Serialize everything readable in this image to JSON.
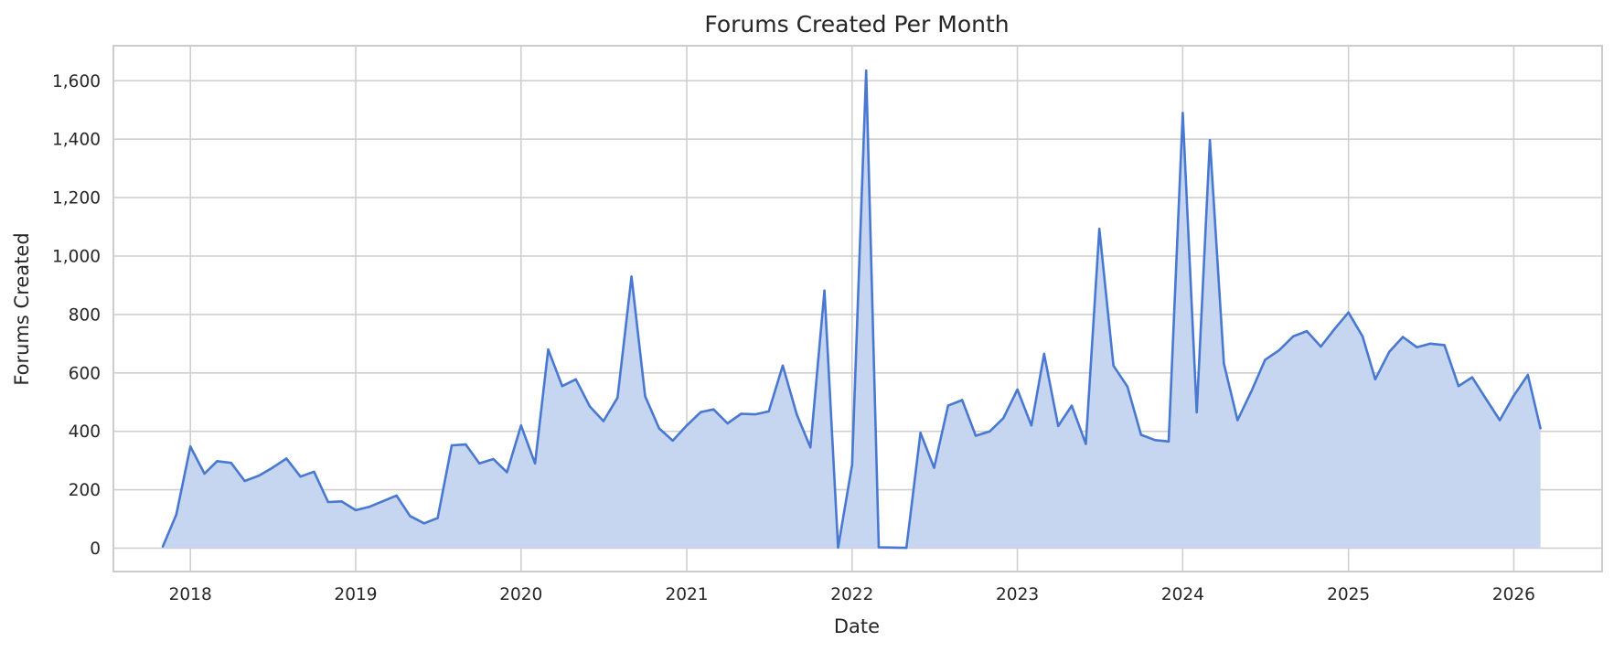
{
  "chart_data": {
    "type": "area",
    "title": "Forums Created Per Month",
    "xlabel": "Date",
    "ylabel": "Forums Created",
    "x_tick_labels": [
      "2018",
      "2019",
      "2020",
      "2021",
      "2022",
      "2023",
      "2024",
      "2025",
      "2026"
    ],
    "y_ticks": [
      0,
      200,
      400,
      600,
      800,
      1000,
      1200,
      1400,
      1600
    ],
    "y_tick_labels": [
      "0",
      "200",
      "400",
      "600",
      "800",
      "1,000",
      "1,200",
      "1,400",
      "1,600"
    ],
    "xlim": [
      "2017-07-15",
      "2026-07-15"
    ],
    "ylim": [
      -80,
      1720
    ],
    "grid": true,
    "line_color": "#4878d0",
    "fill_color": "#c6d5f0",
    "series": [
      {
        "x": [
          "2017-11-01",
          "2017-12-01",
          "2018-01-01",
          "2018-02-01",
          "2018-03-01",
          "2018-04-01",
          "2018-05-01",
          "2018-06-01",
          "2018-07-01",
          "2018-08-01",
          "2018-09-01",
          "2018-10-01",
          "2018-11-01",
          "2018-12-01",
          "2019-01-01",
          "2019-02-01",
          "2019-03-01",
          "2019-04-01",
          "2019-05-01",
          "2019-06-01",
          "2019-07-01",
          "2019-08-01",
          "2019-09-01",
          "2019-10-01",
          "2019-11-01",
          "2019-12-01",
          "2020-01-01",
          "2020-02-01",
          "2020-03-01",
          "2020-04-01",
          "2020-05-01",
          "2020-06-01",
          "2020-07-01",
          "2020-08-01",
          "2020-09-01",
          "2020-10-01",
          "2020-11-01",
          "2020-12-01",
          "2021-01-01",
          "2021-02-01",
          "2021-03-01",
          "2021-04-01",
          "2021-05-01",
          "2021-06-01",
          "2021-07-01",
          "2021-08-01",
          "2021-09-01",
          "2021-10-01",
          "2021-11-01",
          "2021-12-01",
          "2022-01-01",
          "2022-02-01",
          "2022-03-01",
          "2022-04-01",
          "2022-05-01",
          "2022-06-01",
          "2022-07-01",
          "2022-08-01",
          "2022-09-01",
          "2022-10-01",
          "2022-11-01",
          "2022-12-01",
          "2023-01-01",
          "2023-02-01",
          "2023-03-01",
          "2023-04-01",
          "2023-05-01",
          "2023-06-01",
          "2023-07-01",
          "2023-08-01",
          "2023-09-01",
          "2023-10-01",
          "2023-11-01",
          "2023-12-01",
          "2024-01-01",
          "2024-02-01",
          "2024-03-01",
          "2024-04-01",
          "2024-05-01",
          "2024-06-01",
          "2024-07-01",
          "2024-08-01",
          "2024-09-01",
          "2024-10-01",
          "2024-11-01",
          "2024-12-01",
          "2025-01-01",
          "2025-02-01",
          "2025-03-01",
          "2025-04-01",
          "2025-05-01",
          "2025-06-01",
          "2025-07-01",
          "2025-08-01",
          "2025-09-01",
          "2025-10-01",
          "2025-11-01",
          "2025-12-01",
          "2026-01-01",
          "2026-02-01",
          "2026-03-01"
        ],
        "values": [
          5,
          115,
          348,
          255,
          298,
          292,
          230,
          248,
          275,
          307,
          245,
          262,
          158,
          160,
          130,
          142,
          160,
          180,
          110,
          85,
          103,
          352,
          355,
          290,
          305,
          260,
          420,
          290,
          680,
          555,
          578,
          485,
          435,
          515,
          930,
          520,
          410,
          368,
          420,
          466,
          475,
          427,
          460,
          458,
          468,
          625,
          457,
          345,
          882,
          2,
          285,
          1635,
          3,
          2,
          1,
          395,
          275,
          488,
          507,
          385,
          400,
          445,
          543,
          420,
          665,
          418,
          488,
          357,
          1093,
          625,
          553,
          388,
          370,
          365,
          1490,
          465,
          1397,
          632,
          438,
          538,
          645,
          678,
          725,
          743,
          690,
          750,
          807,
          725,
          578,
          672,
          723,
          688,
          700,
          695,
          555,
          585,
          510,
          438,
          522,
          593,
          410
        ]
      }
    ]
  }
}
